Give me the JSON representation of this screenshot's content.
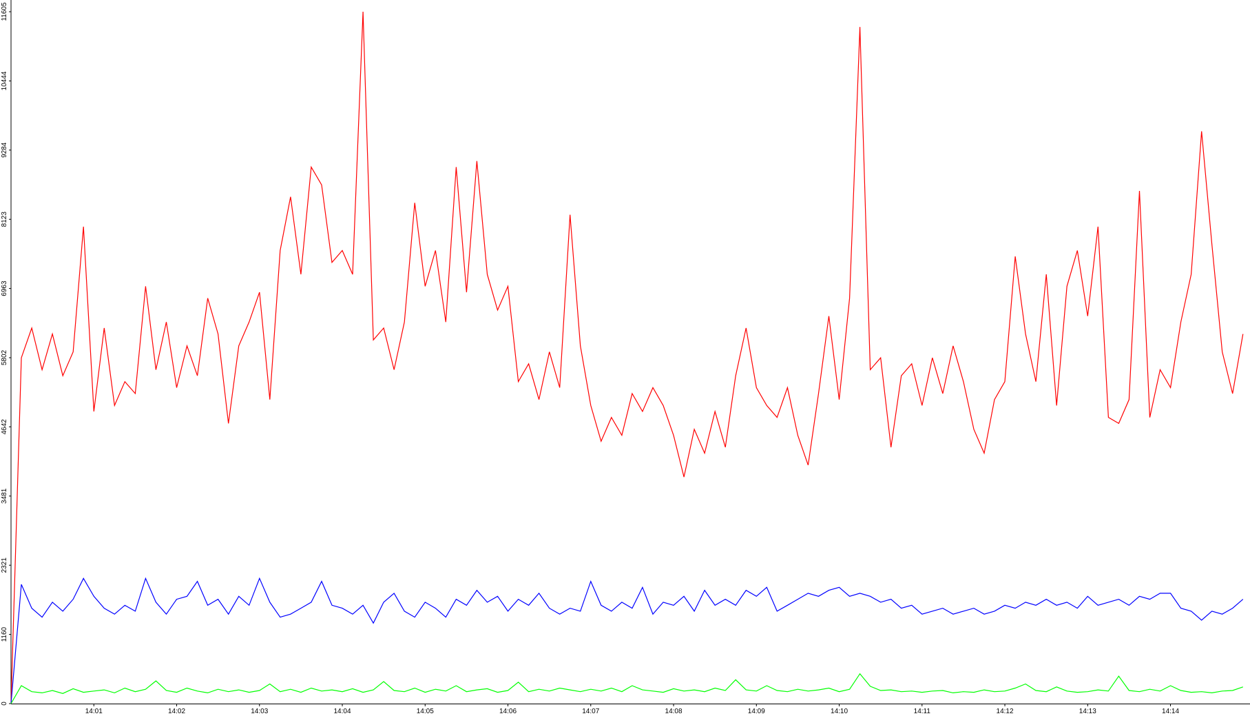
{
  "chart_data": {
    "type": "line",
    "x": [
      0,
      0.125,
      0.25,
      0.375,
      0.5,
      0.625,
      0.75,
      0.875,
      1,
      1.125,
      1.25,
      1.375,
      1.5,
      1.625,
      1.75,
      1.875,
      2,
      2.125,
      2.25,
      2.375,
      2.5,
      2.625,
      2.75,
      2.875,
      3,
      3.125,
      3.25,
      3.375,
      3.5,
      3.625,
      3.75,
      3.875,
      4,
      4.125,
      4.25,
      4.375,
      4.5,
      4.625,
      4.75,
      4.875,
      5,
      5.125,
      5.25,
      5.375,
      5.5,
      5.625,
      5.75,
      5.875,
      6,
      6.125,
      6.25,
      6.375,
      6.5,
      6.625,
      6.75,
      6.875,
      7,
      7.125,
      7.25,
      7.375,
      7.5,
      7.625,
      7.75,
      7.875,
      8,
      8.125,
      8.25,
      8.375,
      8.5,
      8.625,
      8.75,
      8.875,
      9,
      9.125,
      9.25,
      9.375,
      9.5,
      9.625,
      9.75,
      9.875,
      10,
      10.125,
      10.25,
      10.375,
      10.5,
      10.625,
      10.75,
      10.875,
      11,
      11.125,
      11.25,
      11.375,
      11.5,
      11.625,
      11.75,
      11.875,
      12,
      12.125,
      12.25,
      12.375,
      12.5,
      12.625,
      12.75,
      12.875,
      13,
      13.125,
      13.25,
      13.375,
      13.5,
      13.625,
      13.75,
      13.875,
      14,
      14.125,
      14.25,
      14.375,
      14.5,
      14.625,
      14.75,
      14.875
    ],
    "series": [
      {
        "color": "#ff0000",
        "values": [
          0,
          5800,
          6300,
          5600,
          6200,
          5500,
          5900,
          8000,
          4900,
          6300,
          5000,
          5400,
          5200,
          7000,
          5600,
          6400,
          5300,
          6000,
          5500,
          6800,
          6200,
          4700,
          6000,
          6400,
          6900,
          5100,
          7600,
          8500,
          7200,
          9000,
          8700,
          7400,
          7600,
          7200,
          11605,
          6100,
          6300,
          5600,
          6400,
          8400,
          7000,
          7600,
          6400,
          9000,
          6900,
          9100,
          7200,
          6600,
          7000,
          5400,
          5700,
          5100,
          5900,
          5300,
          8200,
          6000,
          5000,
          4400,
          4800,
          4500,
          5200,
          4900,
          5300,
          5000,
          4500,
          3800,
          4600,
          4200,
          4900,
          4300,
          5500,
          6300,
          5300,
          5000,
          4800,
          5300,
          4500,
          4000,
          5200,
          6500,
          5100,
          6800,
          11350,
          5600,
          5800,
          4300,
          5500,
          5700,
          5000,
          5800,
          5200,
          6000,
          5400,
          4600,
          4200,
          5100,
          5400,
          7500,
          6200,
          5400,
          7200,
          5000,
          7000,
          7600,
          6500,
          8000,
          4800,
          4700,
          5100,
          8600,
          4800,
          5600,
          5300,
          6400,
          7200,
          9600,
          7700,
          5900,
          5200,
          6200
        ]
      },
      {
        "color": "#0000ff",
        "values": [
          0,
          2000,
          1600,
          1450,
          1700,
          1550,
          1750,
          2100,
          1800,
          1600,
          1500,
          1650,
          1550,
          2100,
          1700,
          1500,
          1750,
          1800,
          2050,
          1650,
          1750,
          1500,
          1800,
          1650,
          2100,
          1700,
          1450,
          1500,
          1600,
          1700,
          2050,
          1650,
          1600,
          1500,
          1650,
          1350,
          1700,
          1850,
          1550,
          1450,
          1700,
          1600,
          1450,
          1750,
          1650,
          1900,
          1700,
          1800,
          1550,
          1750,
          1650,
          1850,
          1600,
          1500,
          1600,
          1550,
          2050,
          1650,
          1550,
          1700,
          1600,
          1950,
          1500,
          1700,
          1650,
          1800,
          1550,
          1900,
          1650,
          1750,
          1650,
          1900,
          1800,
          1950,
          1550,
          1650,
          1750,
          1850,
          1800,
          1900,
          1950,
          1800,
          1850,
          1800,
          1700,
          1750,
          1600,
          1650,
          1500,
          1550,
          1600,
          1500,
          1550,
          1600,
          1500,
          1550,
          1650,
          1600,
          1700,
          1650,
          1750,
          1650,
          1700,
          1600,
          1800,
          1650,
          1700,
          1750,
          1650,
          1800,
          1750,
          1850,
          1850,
          1600,
          1550,
          1400,
          1550,
          1500,
          1600,
          1750
        ]
      },
      {
        "color": "#00ff00",
        "values": [
          0,
          300,
          200,
          180,
          220,
          170,
          250,
          190,
          210,
          230,
          180,
          260,
          200,
          240,
          380,
          220,
          190,
          260,
          210,
          180,
          240,
          200,
          230,
          190,
          220,
          330,
          200,
          240,
          190,
          260,
          210,
          230,
          200,
          250,
          190,
          230,
          370,
          220,
          200,
          260,
          190,
          240,
          210,
          300,
          200,
          230,
          250,
          190,
          220,
          360,
          200,
          240,
          210,
          260,
          230,
          200,
          240,
          210,
          260,
          200,
          300,
          230,
          210,
          190,
          250,
          210,
          230,
          200,
          260,
          220,
          400,
          230,
          210,
          300,
          220,
          200,
          240,
          210,
          230,
          260,
          200,
          240,
          500,
          290,
          220,
          230,
          200,
          210,
          190,
          210,
          220,
          180,
          200,
          190,
          230,
          200,
          210,
          260,
          330,
          220,
          200,
          280,
          210,
          190,
          200,
          230,
          210,
          460,
          220,
          200,
          240,
          210,
          300,
          220,
          190,
          200,
          180,
          210,
          220,
          280
        ]
      }
    ],
    "xlim": [
      0,
      14.96
    ],
    "xticks": [
      {
        "value": 1,
        "label": "14:01"
      },
      {
        "value": 2,
        "label": "14:02"
      },
      {
        "value": 3,
        "label": "14:03"
      },
      {
        "value": 4,
        "label": "14:04"
      },
      {
        "value": 5,
        "label": "14:05"
      },
      {
        "value": 6,
        "label": "14:06"
      },
      {
        "value": 7,
        "label": "14:07"
      },
      {
        "value": 8,
        "label": "14:08"
      },
      {
        "value": 9,
        "label": "14:09"
      },
      {
        "value": 10,
        "label": "14:10"
      },
      {
        "value": 11,
        "label": "14:11"
      },
      {
        "value": 12,
        "label": "14:12"
      },
      {
        "value": 13,
        "label": "14:13"
      },
      {
        "value": 14,
        "label": "14:14"
      }
    ],
    "ylim": [
      0,
      11605
    ],
    "yticks": [
      0,
      1160,
      2321,
      3481,
      4642,
      5802,
      6963,
      8123,
      9284,
      10444,
      11605
    ]
  }
}
